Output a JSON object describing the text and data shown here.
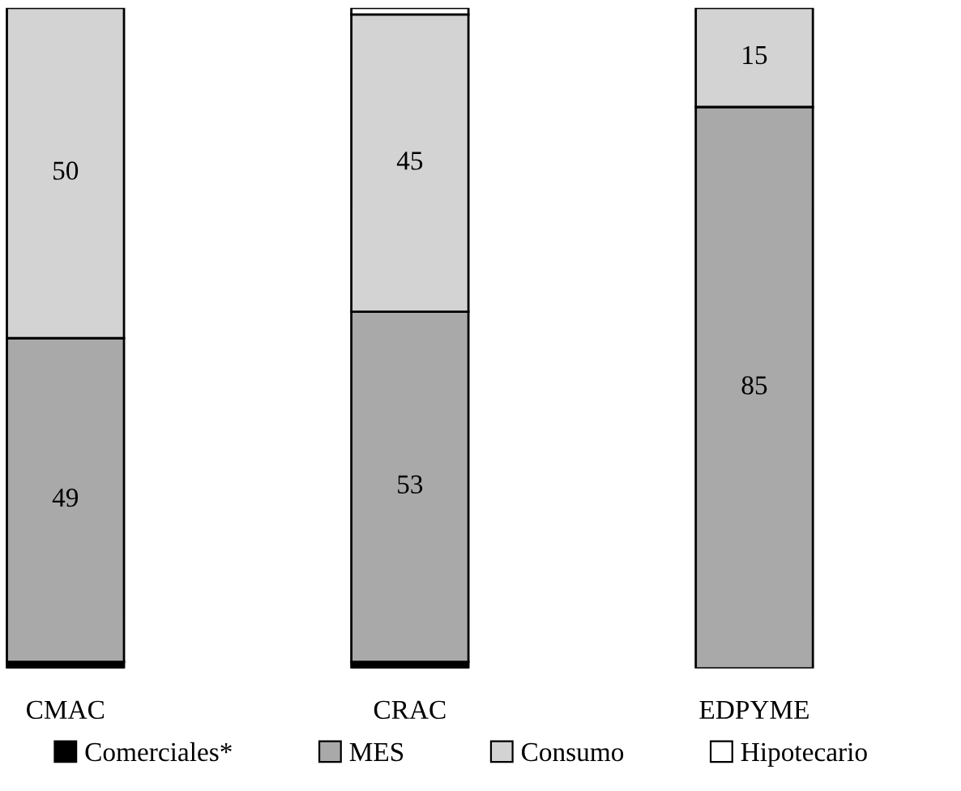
{
  "chart_data": {
    "type": "bar",
    "stacked": true,
    "categories": [
      "CMAC",
      "CRAC",
      "EDPYME"
    ],
    "series": [
      {
        "name": "Comerciales*",
        "color": "#000000",
        "values": [
          1,
          1,
          0
        ],
        "value_labels": [
          null,
          null,
          null
        ]
      },
      {
        "name": "MES",
        "color": "#a9a9a9",
        "values": [
          49,
          53,
          85
        ],
        "value_labels": [
          "49",
          "53",
          "85"
        ]
      },
      {
        "name": "Consumo",
        "color": "#d3d3d3",
        "values": [
          50,
          45,
          15
        ],
        "value_labels": [
          "50",
          "45",
          "15"
        ]
      },
      {
        "name": "Hipotecario",
        "color": "#ffffff",
        "values": [
          0,
          1,
          0
        ],
        "value_labels": [
          null,
          null,
          null
        ]
      }
    ],
    "legend": "bottom"
  }
}
